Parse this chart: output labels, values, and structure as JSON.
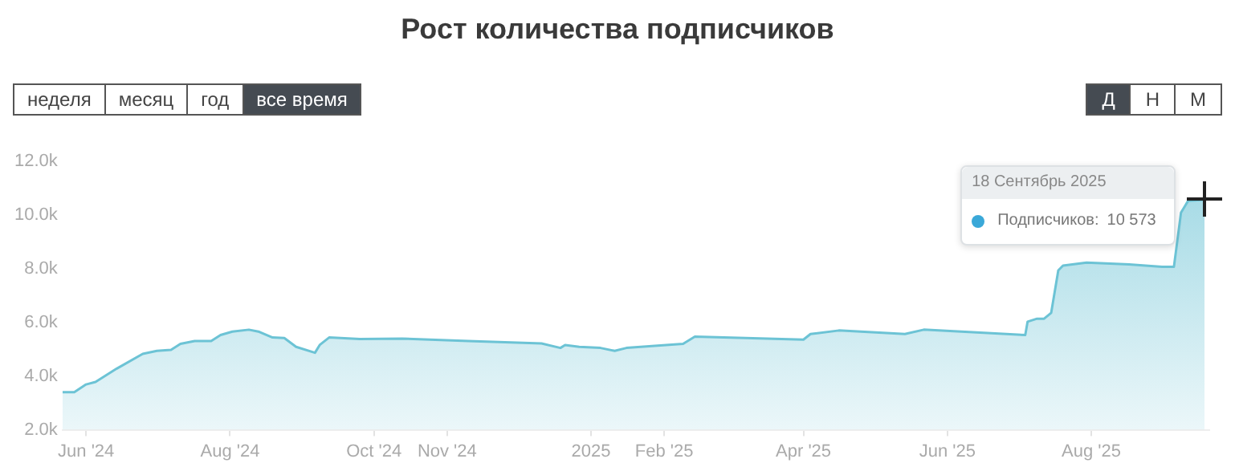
{
  "chart_data": {
    "type": "area",
    "title": "Рост количества подписчиков",
    "x": [
      "2024-05-22",
      "2024-05-27",
      "2024-06-01",
      "2024-06-05",
      "2024-06-14",
      "2024-06-25",
      "2024-07-01",
      "2024-07-07",
      "2024-07-11",
      "2024-07-17",
      "2024-07-24",
      "2024-07-28",
      "2024-08-02",
      "2024-08-09",
      "2024-08-13",
      "2024-08-19",
      "2024-08-24",
      "2024-08-29",
      "2024-09-06",
      "2024-09-08",
      "2024-09-12",
      "2024-09-25",
      "2024-10-13",
      "2024-11-10",
      "2024-12-11",
      "2024-12-19",
      "2024-12-21",
      "2024-12-27",
      "2025-01-05",
      "2025-01-11",
      "2025-01-16",
      "2025-02-09",
      "2025-02-14",
      "2025-04-01",
      "2025-04-04",
      "2025-04-16",
      "2025-05-14",
      "2025-05-22",
      "2025-07-04",
      "2025-07-05",
      "2025-07-09",
      "2025-07-12",
      "2025-07-15",
      "2025-07-18",
      "2025-07-20",
      "2025-07-30",
      "2025-08-17",
      "2025-08-31",
      "2025-09-05",
      "2025-09-08",
      "2025-09-11",
      "2025-09-18"
    ],
    "series": [
      {
        "name": "Подписчиков:",
        "color": "#6cc3d5",
        "values": [
          3400,
          3400,
          3690,
          3780,
          4280,
          4830,
          4940,
          4980,
          5200,
          5310,
          5310,
          5530,
          5660,
          5730,
          5660,
          5440,
          5420,
          5090,
          4870,
          5160,
          5440,
          5380,
          5400,
          5310,
          5220,
          5050,
          5160,
          5090,
          5050,
          4940,
          5050,
          5200,
          5470,
          5360,
          5570,
          5700,
          5570,
          5730,
          5530,
          6030,
          6140,
          6140,
          6360,
          7940,
          8120,
          8230,
          8160,
          8070,
          8070,
          10090,
          10530,
          10573
        ],
        "value_labels": [
          null,
          null,
          null,
          null,
          null,
          null,
          null,
          null,
          null,
          null,
          null,
          null,
          null,
          null,
          null,
          null,
          null,
          null,
          null,
          null,
          null,
          null,
          null,
          null,
          null,
          null,
          null,
          null,
          null,
          null,
          null,
          null,
          null,
          null,
          null,
          null,
          null,
          null,
          null,
          null,
          null,
          null,
          null,
          null,
          null,
          null,
          null,
          null,
          null,
          null,
          null,
          null
        ]
      }
    ],
    "xlim": [
      "2024-05-22",
      "2025-09-20"
    ],
    "xticks": [
      {
        "value": "2024-06-01",
        "label": "Jun '24"
      },
      {
        "value": "2024-08-01",
        "label": "Aug '24"
      },
      {
        "value": "2024-10-01",
        "label": "Oct '24"
      },
      {
        "value": "2024-11-01",
        "label": "Nov '24"
      },
      {
        "value": "2025-01-01",
        "label": "2025"
      },
      {
        "value": "2025-02-01",
        "label": "Feb '25"
      },
      {
        "value": "2025-04-01",
        "label": "Apr '25"
      },
      {
        "value": "2025-06-01",
        "label": "Jun '25"
      },
      {
        "value": "2025-08-01",
        "label": "Aug '25"
      }
    ],
    "ylim": [
      2000,
      12000
    ],
    "yticks": [
      {
        "value": 2000,
        "label": "2.0k"
      },
      {
        "value": 4000,
        "label": "4.0k"
      },
      {
        "value": 6000,
        "label": "6.0k"
      },
      {
        "value": 8000,
        "label": "8.0k"
      },
      {
        "value": 10000,
        "label": "10.0k"
      },
      {
        "value": 12000,
        "label": "12.0k"
      }
    ],
    "marker": "none",
    "annotations": [
      "неделя",
      "месяц",
      "год",
      "все время",
      "Д",
      "Н",
      "М",
      "18 Сентябрь 2025",
      "10 573"
    ]
  }
}
